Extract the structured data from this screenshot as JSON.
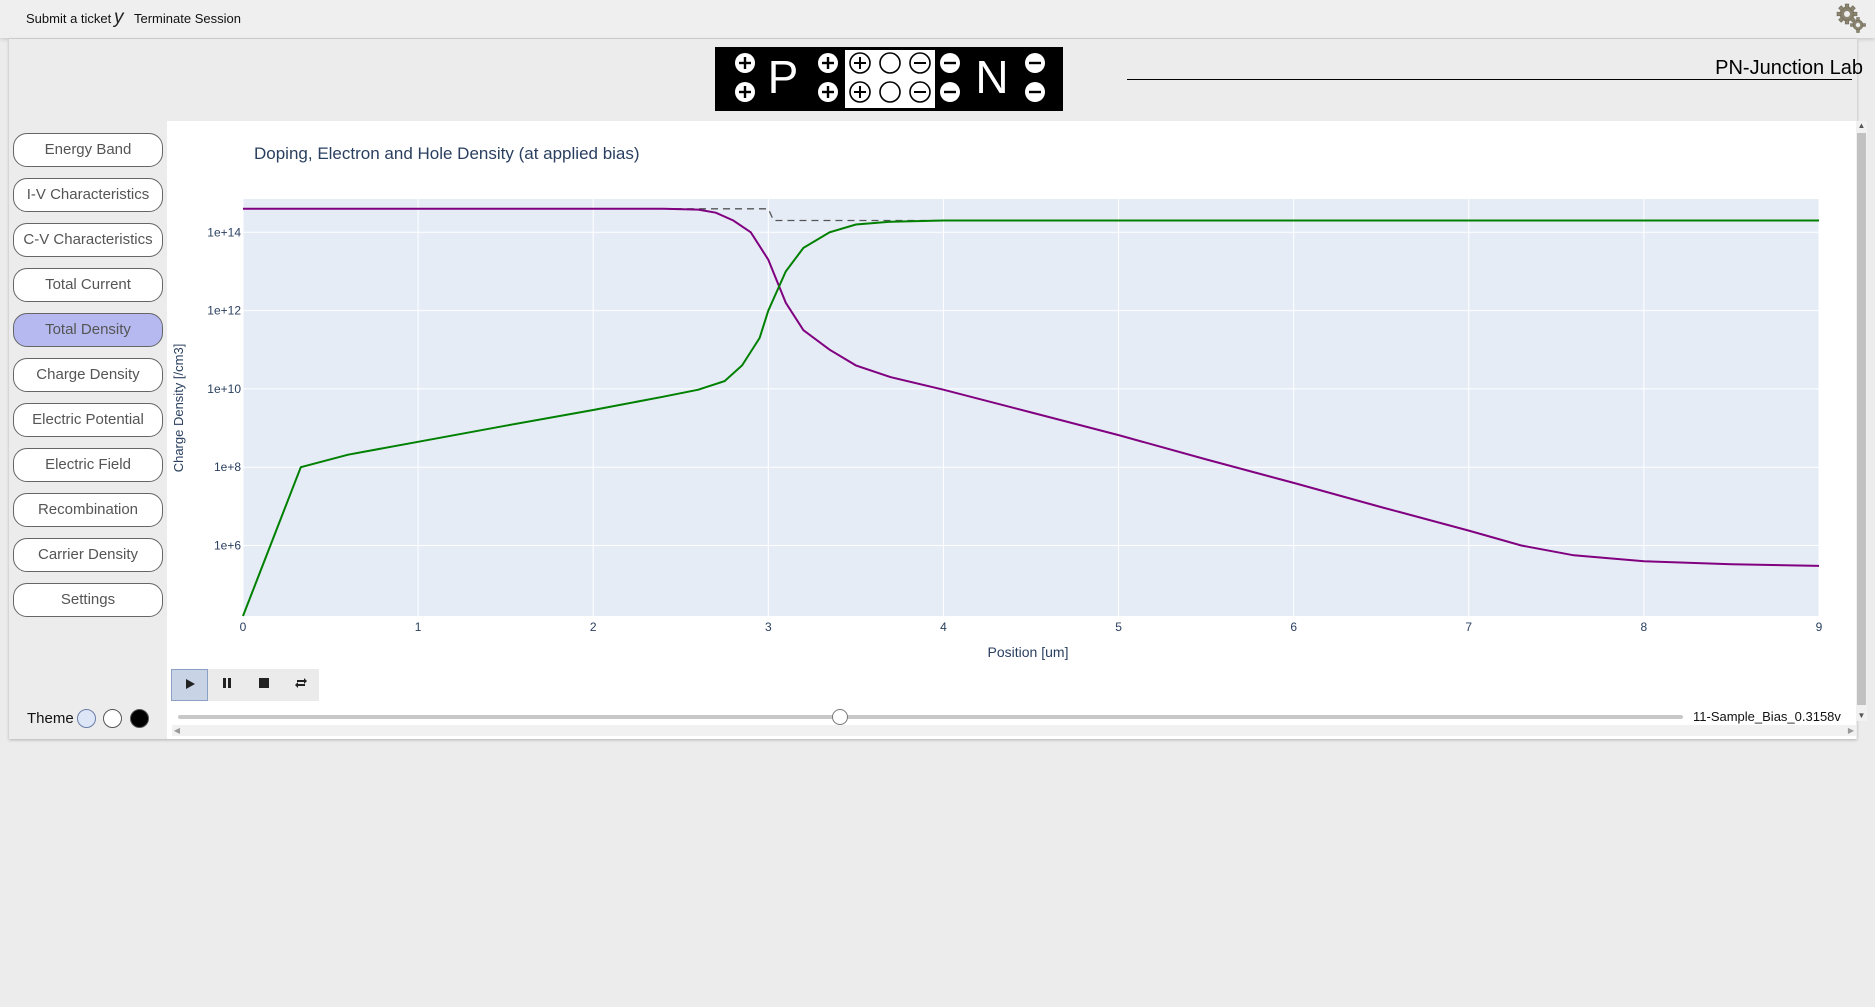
{
  "topbar": {
    "submit_ticket": "Submit a ticket",
    "separator": "y",
    "terminate": "Terminate Session"
  },
  "app": {
    "title": "PN-Junction Lab",
    "logo": {
      "p_label": "P",
      "n_label": "N"
    }
  },
  "sidebar": {
    "items": [
      {
        "label": "Energy Band",
        "active": false
      },
      {
        "label": "I-V Characteristics",
        "active": false
      },
      {
        "label": "C-V Characteristics",
        "active": false
      },
      {
        "label": "Total Current",
        "active": false
      },
      {
        "label": "Total Density",
        "active": true
      },
      {
        "label": "Charge Density",
        "active": false
      },
      {
        "label": "Electric Potential",
        "active": false
      },
      {
        "label": "Electric Field",
        "active": false
      },
      {
        "label": "Recombination",
        "active": false
      },
      {
        "label": "Carrier Density",
        "active": false
      },
      {
        "label": "Settings",
        "active": false
      }
    ],
    "theme": {
      "label": "Theme",
      "options": [
        "light-blue",
        "white",
        "black"
      ]
    }
  },
  "animation": {
    "frame_label": "11-Sample_Bias_0.3158v",
    "slider_fraction": 0.44
  },
  "colors": {
    "plot_bg": "#e5ecf6",
    "hole_line": "#800080",
    "electron_line": "#008000",
    "doping_line": "#555555",
    "axis_text": "#2a3f5f"
  },
  "chart_data": {
    "type": "line",
    "title": "Doping, Electron and Hole Density (at applied bias)",
    "xlabel": "Position [um]",
    "ylabel": "Charge Density [/cm3]",
    "log_y": true,
    "xlim": [
      0,
      9
    ],
    "ylim_log10": [
      4.2,
      14.85
    ],
    "xticks": [
      0,
      1,
      2,
      3,
      4,
      5,
      6,
      7,
      8,
      9
    ],
    "yticks": [
      {
        "exp": 6,
        "label": "1e+6"
      },
      {
        "exp": 8,
        "label": "1e+8"
      },
      {
        "exp": 10,
        "label": "1e+10"
      },
      {
        "exp": 12,
        "label": "1e+12"
      },
      {
        "exp": 14,
        "label": "1e+14"
      }
    ],
    "grid": true,
    "series": [
      {
        "name": "",
        "role": "doping",
        "dash": true,
        "x": [
          0,
          2.99,
          3.0,
          3.03,
          9
        ],
        "log10": [
          14.6,
          14.6,
          14.6,
          14.3,
          14.3
        ]
      },
      {
        "name": "",
        "role": "hole",
        "x": [
          0,
          2.4,
          2.6,
          2.7,
          2.8,
          2.9,
          3.0,
          3.1,
          3.2,
          3.35,
          3.5,
          3.7,
          4.0,
          4.5,
          5.0,
          5.5,
          6.0,
          6.5,
          7.0,
          7.3,
          7.6,
          8.0,
          8.5,
          9.0
        ],
        "log10": [
          14.6,
          14.6,
          14.58,
          14.5,
          14.3,
          14.0,
          13.3,
          12.2,
          11.5,
          11.0,
          10.6,
          10.3,
          9.98,
          9.4,
          8.82,
          8.2,
          7.6,
          6.98,
          6.38,
          6.0,
          5.75,
          5.6,
          5.52,
          5.48
        ]
      },
      {
        "name": "",
        "role": "electron",
        "x": [
          0,
          0.33,
          0.6,
          1.0,
          1.5,
          2.0,
          2.4,
          2.6,
          2.75,
          2.85,
          2.95,
          3.0,
          3.1,
          3.2,
          3.35,
          3.5,
          3.7,
          4.0,
          9.0
        ],
        "log10": [
          4.2,
          8.0,
          8.32,
          8.65,
          9.06,
          9.46,
          9.8,
          9.98,
          10.2,
          10.6,
          11.3,
          12.0,
          13.0,
          13.6,
          14.0,
          14.2,
          14.27,
          14.3,
          14.3
        ]
      }
    ]
  }
}
